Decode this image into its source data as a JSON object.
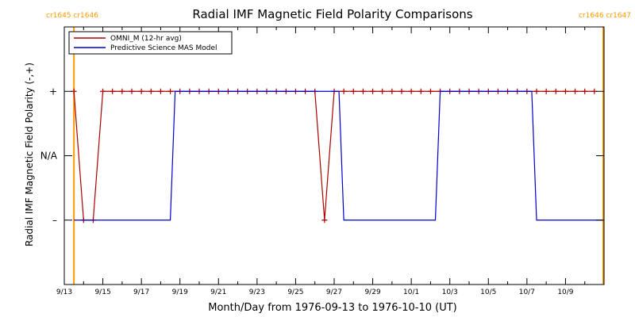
{
  "chart_data": {
    "type": "line",
    "title": "Radial IMF Magnetic Field Polarity Comparisons",
    "xlabel": "Month/Day from 1976-09-13 to 1976-10-10 (UT)",
    "ylabel": "Radial IMF Magnetic Field Polarity (-,+)",
    "xlim": [
      "1976-09-13T00:00",
      "1976-10-11T00:00"
    ],
    "ylim": [
      -2,
      2
    ],
    "x_tick_labels": [
      "9/13",
      "9/15",
      "9/17",
      "9/19",
      "9/21",
      "9/23",
      "9/25",
      "9/27",
      "9/29",
      "10/1",
      "10/3",
      "10/5",
      "10/7",
      "10/9"
    ],
    "x_tick_dates": [
      "1976-09-13T00:00",
      "1976-09-15T00:00",
      "1976-09-17T00:00",
      "1976-09-19T00:00",
      "1976-09-21T00:00",
      "1976-09-23T00:00",
      "1976-09-25T00:00",
      "1976-09-27T00:00",
      "1976-09-29T00:00",
      "1976-10-01T00:00",
      "1976-10-03T00:00",
      "1976-10-05T00:00",
      "1976-10-07T00:00",
      "1976-10-09T00:00"
    ],
    "y_ticks": [
      {
        "label": "+",
        "value": 1
      },
      {
        "label": "N/A",
        "value": 0
      },
      {
        "label": "–",
        "value": -1
      }
    ],
    "carrington_markers": [
      {
        "label": "cr1645 cr1646",
        "date": "1976-09-13T12:00",
        "side": "left"
      },
      {
        "label": "cr1646 cr1647",
        "date": "1976-10-10T23:00",
        "side": "right"
      }
    ],
    "legend_position": "top-left",
    "series": [
      {
        "name": "OMNI_M (12-hr avg)",
        "color": "#aa0000",
        "marker": "plus",
        "points": [
          [
            "1976-09-13T12:00",
            1
          ],
          [
            "1976-09-14T00:00",
            -1
          ],
          [
            "1976-09-14T12:00",
            -1
          ],
          [
            "1976-09-15T00:00",
            1
          ],
          [
            "1976-09-15T12:00",
            1
          ],
          [
            "1976-09-16T00:00",
            1
          ],
          [
            "1976-09-16T12:00",
            1
          ],
          [
            "1976-09-17T00:00",
            1
          ],
          [
            "1976-09-17T12:00",
            1
          ],
          [
            "1976-09-18T00:00",
            1
          ],
          [
            "1976-09-18T12:00",
            1
          ],
          [
            "1976-09-19T00:00",
            1
          ],
          [
            "1976-09-19T12:00",
            1
          ],
          [
            "1976-09-20T00:00",
            1
          ],
          [
            "1976-09-20T12:00",
            1
          ],
          [
            "1976-09-21T00:00",
            1
          ],
          [
            "1976-09-21T12:00",
            1
          ],
          [
            "1976-09-22T00:00",
            1
          ],
          [
            "1976-09-22T12:00",
            1
          ],
          [
            "1976-09-23T00:00",
            1
          ],
          [
            "1976-09-23T12:00",
            1
          ],
          [
            "1976-09-24T00:00",
            1
          ],
          [
            "1976-09-24T12:00",
            1
          ],
          [
            "1976-09-25T00:00",
            1
          ],
          [
            "1976-09-25T12:00",
            1
          ],
          [
            "1976-09-26T00:00",
            1
          ],
          [
            "1976-09-26T12:00",
            -1
          ],
          [
            "1976-09-27T00:00",
            1
          ],
          [
            "1976-09-27T12:00",
            1
          ],
          [
            "1976-09-28T00:00",
            1
          ],
          [
            "1976-09-28T12:00",
            1
          ],
          [
            "1976-09-29T00:00",
            1
          ],
          [
            "1976-09-29T12:00",
            1
          ],
          [
            "1976-09-30T00:00",
            1
          ],
          [
            "1976-09-30T12:00",
            1
          ],
          [
            "1976-10-01T00:00",
            1
          ],
          [
            "1976-10-01T12:00",
            1
          ],
          [
            "1976-10-02T00:00",
            1
          ],
          [
            "1976-10-02T12:00",
            1
          ],
          [
            "1976-10-03T00:00",
            1
          ],
          [
            "1976-10-03T12:00",
            1
          ],
          [
            "1976-10-04T00:00",
            1
          ],
          [
            "1976-10-04T12:00",
            1
          ],
          [
            "1976-10-05T00:00",
            1
          ],
          [
            "1976-10-05T12:00",
            1
          ],
          [
            "1976-10-06T00:00",
            1
          ],
          [
            "1976-10-06T12:00",
            1
          ],
          [
            "1976-10-07T00:00",
            1
          ],
          [
            "1976-10-07T12:00",
            1
          ],
          [
            "1976-10-08T00:00",
            1
          ],
          [
            "1976-10-08T12:00",
            1
          ],
          [
            "1976-10-09T00:00",
            1
          ],
          [
            "1976-10-09T12:00",
            1
          ],
          [
            "1976-10-10T00:00",
            1
          ],
          [
            "1976-10-10T12:00",
            1
          ]
        ]
      },
      {
        "name": "Predictive Science MAS Model",
        "color": "#0000cc",
        "marker": "none",
        "points": [
          [
            "1976-09-13T12:00",
            -1
          ],
          [
            "1976-09-18T12:00",
            -1
          ],
          [
            "1976-09-18T18:00",
            1
          ],
          [
            "1976-09-27T06:00",
            1
          ],
          [
            "1976-09-27T12:00",
            -1
          ],
          [
            "1976-10-02T06:00",
            -1
          ],
          [
            "1976-10-02T12:00",
            1
          ],
          [
            "1976-10-07T06:00",
            1
          ],
          [
            "1976-10-07T12:00",
            -1
          ],
          [
            "1976-10-10T23:00",
            -1
          ]
        ]
      }
    ]
  }
}
